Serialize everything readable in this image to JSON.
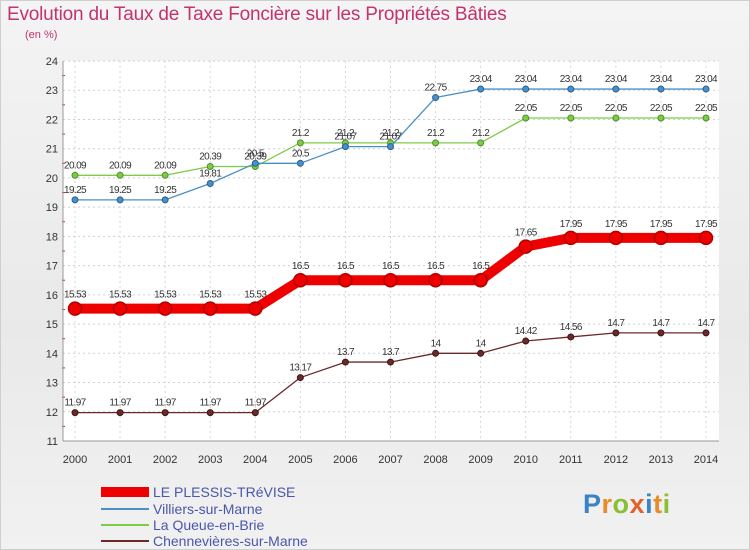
{
  "header": {
    "title": "Evolution du Taux de Taxe Foncière sur les Propriétés Bâties",
    "unit": "(en %)"
  },
  "brand": {
    "letters": [
      "P",
      "r",
      "o",
      "x",
      "i",
      "t",
      "i"
    ],
    "colors": [
      "#3b83c7",
      "#e98b2a",
      "#8bbf33",
      "#e0632a",
      "#3b83c7",
      "#e98b2a",
      "#8bbf33"
    ]
  },
  "chart_data": {
    "type": "line",
    "title": "Evolution du Taux de Taxe Foncière sur les Propriétés Bâties",
    "ylabel": "(en %)",
    "xlabel": "",
    "x": [
      "2000",
      "2001",
      "2002",
      "2003",
      "2004",
      "2005",
      "2006",
      "2007",
      "2008",
      "2009",
      "2010",
      "2011",
      "2012",
      "2013",
      "2014"
    ],
    "ylim": [
      11,
      24
    ],
    "yticks": [
      11,
      12,
      13,
      14,
      15,
      16,
      17,
      18,
      19,
      20,
      21,
      22,
      23,
      24
    ],
    "grid": true,
    "legend_position": "bottom-left",
    "series": [
      {
        "name": "LE PLESSIS-TRéVISE",
        "color": "#ee0000",
        "values": [
          15.53,
          15.53,
          15.53,
          15.53,
          15.53,
          16.5,
          16.5,
          16.5,
          16.5,
          16.5,
          17.65,
          17.95,
          17.95,
          17.95,
          17.95
        ],
        "labels": [
          "15.53",
          "15.53",
          "15.53",
          "15.53",
          "15.53",
          "16.5",
          "16.5",
          "16.5",
          "16.5",
          "16.5",
          "17.65",
          "17.95",
          "17.95",
          "17.95",
          "17.95"
        ]
      },
      {
        "name": "Villiers-sur-Marne",
        "color": "#4a90c8",
        "values": [
          19.25,
          19.25,
          19.25,
          19.81,
          20.5,
          20.5,
          21.07,
          21.07,
          22.75,
          23.04,
          23.04,
          23.04,
          23.04,
          23.04,
          23.04
        ],
        "labels": [
          "19.25",
          "19.25",
          "19.25",
          "19.81",
          "20.5",
          "20.5",
          "21.07",
          "21.07",
          "22.75",
          "23.04",
          "23.04",
          "23.04",
          "23.04",
          "23.04",
          "23.04"
        ]
      },
      {
        "name": "La Queue-en-Brie",
        "color": "#7ccc48",
        "values": [
          20.09,
          20.09,
          20.09,
          20.39,
          20.39,
          21.2,
          21.2,
          21.2,
          21.2,
          21.2,
          22.05,
          22.05,
          22.05,
          22.05,
          22.05
        ],
        "labels": [
          "20.09",
          "20.09",
          "20.09",
          "20.39",
          "20.39",
          "21.2",
          "21.2",
          "21.2",
          "21.2",
          "21.2",
          "22.05",
          "22.05",
          "22.05",
          "22.05",
          "22.05"
        ]
      },
      {
        "name": "Chennevières-sur-Marne",
        "color": "#6b2a2a",
        "values": [
          11.97,
          11.97,
          11.97,
          11.97,
          11.97,
          13.17,
          13.7,
          13.7,
          14,
          14,
          14.42,
          14.56,
          14.7,
          14.7,
          14.7
        ],
        "labels": [
          "11.97",
          "11.97",
          "11.97",
          "11.97",
          "11.97",
          "13.17",
          "13.7",
          "13.7",
          "14",
          "14",
          "14.42",
          "14.56",
          "14.7",
          "14.7",
          "14.7"
        ]
      }
    ]
  }
}
